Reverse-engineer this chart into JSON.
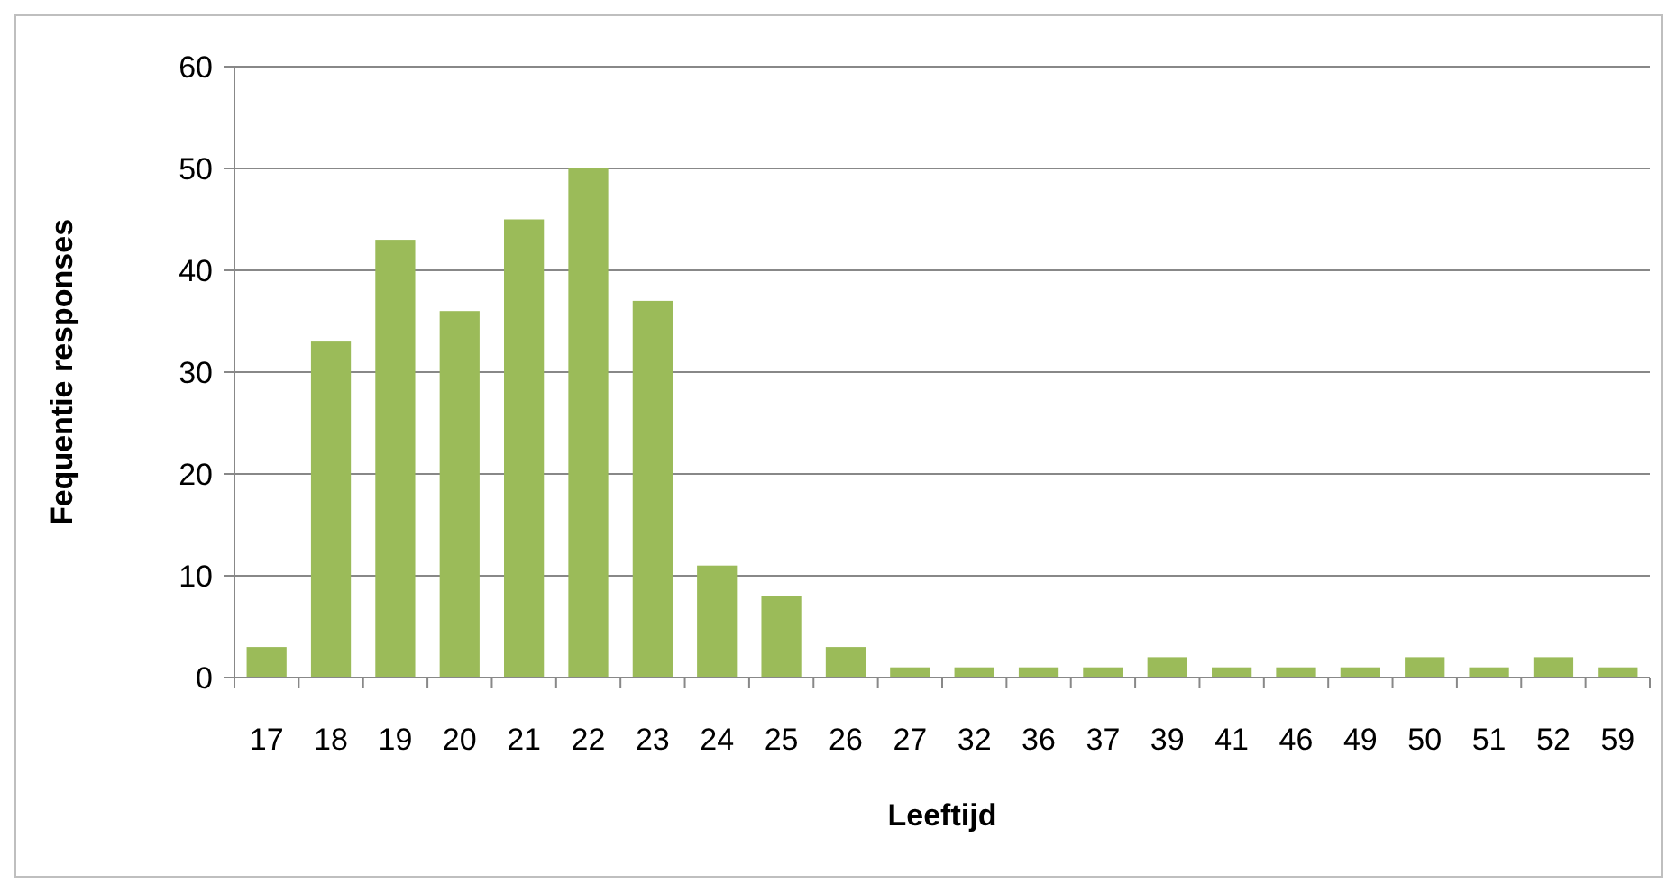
{
  "chart_data": {
    "type": "bar",
    "xlabel": "Leeftijd",
    "ylabel": "Fequentie responses",
    "categories": [
      "17",
      "18",
      "19",
      "20",
      "21",
      "22",
      "23",
      "24",
      "25",
      "26",
      "27",
      "32",
      "36",
      "37",
      "39",
      "41",
      "46",
      "49",
      "50",
      "51",
      "52",
      "59"
    ],
    "values": [
      3,
      33,
      43,
      36,
      45,
      50,
      37,
      11,
      8,
      3,
      1,
      1,
      1,
      1,
      2,
      1,
      1,
      1,
      2,
      1,
      2,
      1
    ],
    "color": "#9bbb59",
    "ylim": [
      0,
      60
    ],
    "yticks": [
      0,
      10,
      20,
      30,
      40,
      50,
      60
    ],
    "grid": "y"
  }
}
